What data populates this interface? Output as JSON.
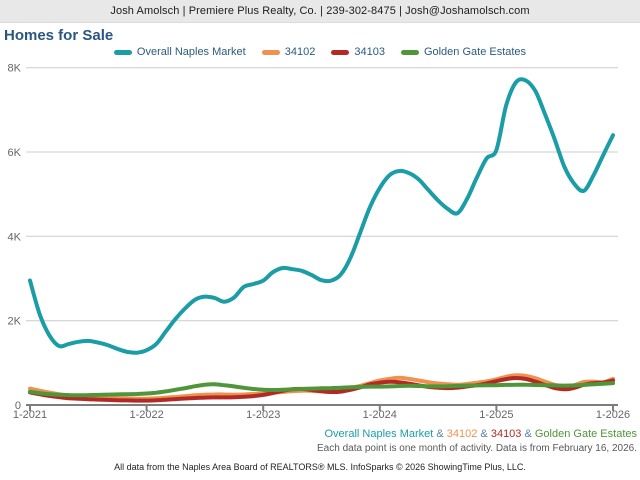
{
  "header": {
    "text": "Josh Amolsch | Premiere Plus Realty, Co. | 239-302-8475 | Josh@Joshamolsch.com"
  },
  "title": "Homes for Sale",
  "colors": {
    "overall": "#1b9da8",
    "z34102": "#f0914f",
    "z34103": "#b22a25",
    "gge": "#4e9639",
    "ampersand": "#5d80a4",
    "axis_text": "#666666",
    "gridline": "#cccccc",
    "axis_line": "#7d7d7d",
    "title_text": "#2b5680"
  },
  "legend": [
    {
      "label": "Overall Naples Market",
      "color": "#1b9da8"
    },
    {
      "label": "34102",
      "color": "#f0914f"
    },
    {
      "label": "34103",
      "color": "#b22a25"
    },
    {
      "label": "Golden Gate Estates",
      "color": "#4e9639"
    }
  ],
  "chart_data": {
    "type": "line",
    "title": "Homes for Sale",
    "x_start": "1-2021",
    "x_end": "1-2026",
    "months_per_point": 1,
    "x_tick_labels": [
      "1-2021",
      "1-2022",
      "1-2023",
      "1-2024",
      "1-2025",
      "1-2026"
    ],
    "y_tick_labels": [
      "0",
      "2K",
      "4K",
      "6K",
      "8K"
    ],
    "y_tick_values": [
      0,
      2000,
      4000,
      6000,
      8000
    ],
    "ylim": [
      0,
      8000
    ],
    "grid": "horizontal-only",
    "legend_position": "top-center",
    "series": [
      {
        "name": "Overall Naples Market",
        "color": "#1b9da8",
        "values": [
          2950,
          2150,
          1650,
          1400,
          1450,
          1500,
          1520,
          1480,
          1420,
          1330,
          1260,
          1240,
          1300,
          1450,
          1750,
          2050,
          2300,
          2500,
          2570,
          2540,
          2450,
          2550,
          2800,
          2870,
          2950,
          3150,
          3250,
          3220,
          3180,
          3080,
          2960,
          2950,
          3100,
          3500,
          4100,
          4700,
          5150,
          5450,
          5550,
          5500,
          5350,
          5100,
          4850,
          4650,
          4550,
          4900,
          5400,
          5850,
          6050,
          7100,
          7650,
          7700,
          7450,
          6900,
          6300,
          5650,
          5250,
          5080,
          5450,
          5930,
          6400
        ]
      },
      {
        "name": "34102",
        "color": "#f0914f",
        "values": [
          390,
          340,
          295,
          255,
          225,
          205,
          190,
          180,
          170,
          160,
          155,
          150,
          150,
          160,
          175,
          190,
          210,
          230,
          245,
          250,
          250,
          245,
          250,
          260,
          270,
          290,
          310,
          330,
          340,
          335,
          325,
          335,
          365,
          405,
          455,
          520,
          580,
          620,
          645,
          620,
          580,
          540,
          510,
          490,
          480,
          500,
          530,
          560,
          610,
          670,
          705,
          690,
          635,
          555,
          480,
          445,
          470,
          545,
          555,
          540,
          620
        ]
      },
      {
        "name": "34103",
        "color": "#b22a25",
        "values": [
          300,
          255,
          215,
          185,
          160,
          148,
          138,
          128,
          120,
          113,
          108,
          105,
          105,
          113,
          125,
          140,
          155,
          165,
          175,
          180,
          180,
          185,
          195,
          210,
          240,
          285,
          335,
          375,
          380,
          355,
          325,
          308,
          318,
          360,
          420,
          490,
          530,
          550,
          540,
          508,
          468,
          430,
          410,
          400,
          412,
          440,
          472,
          512,
          565,
          615,
          640,
          618,
          555,
          475,
          402,
          372,
          405,
          480,
          520,
          532,
          580
        ]
      },
      {
        "name": "Golden Gate Estates",
        "color": "#4e9639",
        "values": [
          312,
          282,
          258,
          242,
          235,
          231,
          235,
          240,
          246,
          251,
          256,
          262,
          272,
          292,
          322,
          362,
          402,
          445,
          482,
          490,
          468,
          440,
          408,
          380,
          360,
          355,
          362,
          372,
          382,
          390,
          396,
          402,
          410,
          420,
          430,
          436,
          436,
          442,
          450,
          456,
          450,
          446,
          440,
          446,
          452,
          460,
          466,
          470,
          470,
          476,
          480,
          480,
          475,
          470,
          465,
          460,
          466,
          476,
          492,
          506,
          520
        ]
      }
    ]
  },
  "footer": {
    "series_line": [
      {
        "text": "Overall Naples Market",
        "color": "#1b9da8"
      },
      {
        "text": " & ",
        "color": "#5d80a4"
      },
      {
        "text": "34102",
        "color": "#f0914f"
      },
      {
        "text": " & ",
        "color": "#5d80a4"
      },
      {
        "text": "34103",
        "color": "#b22a25"
      },
      {
        "text": " & ",
        "color": "#5d80a4"
      },
      {
        "text": "Golden Gate Estates",
        "color": "#4e9639"
      }
    ],
    "note": "Each data point is one month of activity. Data is from February 16, 2026.",
    "attribution": "All data from the Naples Area Board of REALTORS® MLS. InfoSparks © 2026 ShowingTime Plus, LLC."
  }
}
